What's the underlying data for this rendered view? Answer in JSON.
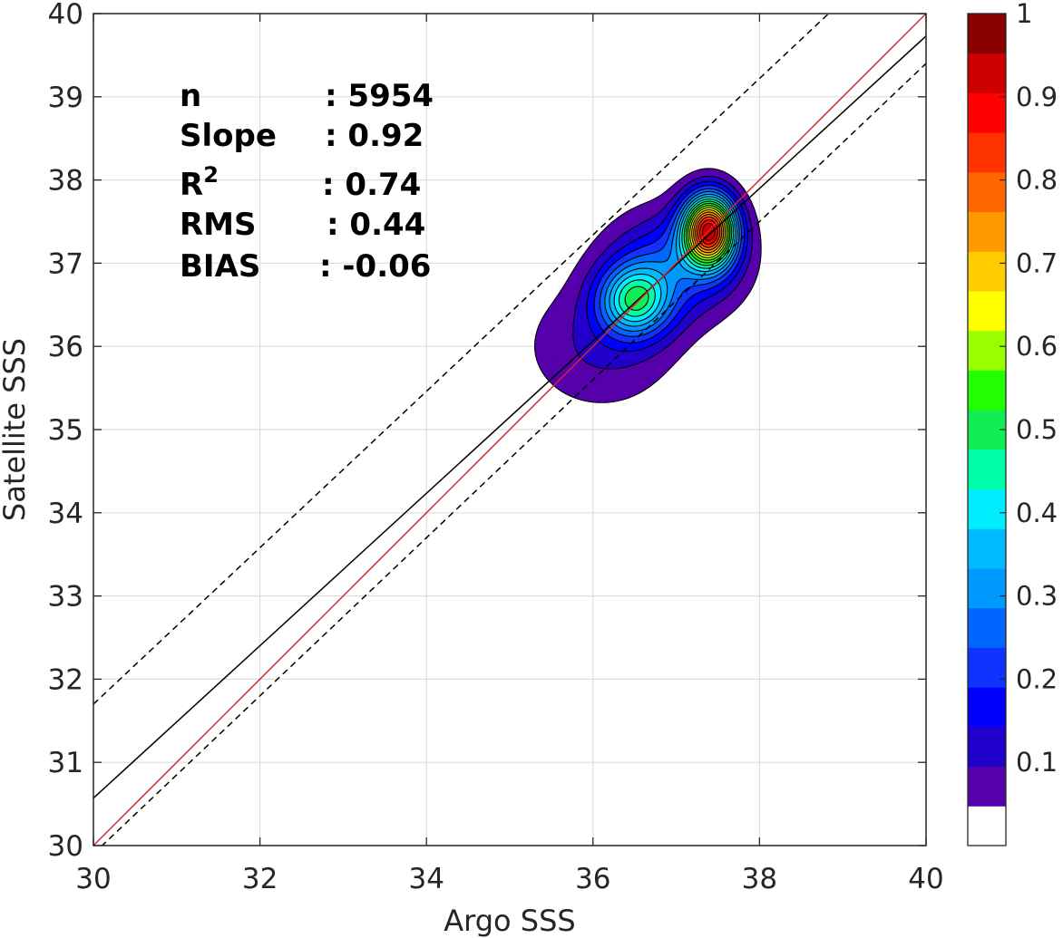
{
  "chart_data": {
    "type": "contour",
    "xlabel": "Argo SSS",
    "ylabel": "Satellite SSS",
    "xlim": [
      30,
      40
    ],
    "ylim": [
      30,
      40
    ],
    "x_ticks": [
      "30",
      "32",
      "34",
      "36",
      "38",
      "40"
    ],
    "y_ticks": [
      "30",
      "31",
      "32",
      "33",
      "34",
      "35",
      "36",
      "37",
      "38",
      "39",
      "40"
    ],
    "grid": true,
    "stats": [
      {
        "label": "n",
        "value": ": 5954"
      },
      {
        "label": "Slope",
        "value": ": 0.92"
      },
      {
        "label": "R",
        "sup": "2",
        "value": ": 0.74"
      },
      {
        "label": "RMS",
        "value": ": 0.44"
      },
      {
        "label": "BIAS",
        "value": ": -0.06"
      }
    ],
    "lines": {
      "one_to_one": {
        "slope": 1.0,
        "intercept": 0.0,
        "color": "#d62728",
        "style": "solid"
      },
      "fit": {
        "slope": 0.916,
        "intercept": 3.09,
        "color": "#000000",
        "style": "solid"
      },
      "upper_bound": {
        "slope": 0.94,
        "intercept": 3.5,
        "color": "#000000",
        "style": "dashed"
      },
      "lower_bound": {
        "slope": 0.95,
        "intercept": 1.4,
        "color": "#000000",
        "style": "dashed"
      }
    },
    "density": {
      "peaks": [
        {
          "x": 37.4,
          "y": 37.4,
          "sx": 0.22,
          "sy": 0.3,
          "amp": 1.0
        },
        {
          "x": 36.5,
          "y": 36.55,
          "sx": 0.3,
          "sy": 0.3,
          "amp": 0.45
        },
        {
          "x": 36.1,
          "y": 36.0,
          "sx": 0.65,
          "sy": 0.55,
          "amp": 0.12
        },
        {
          "x": 37.0,
          "y": 37.0,
          "sx": 0.55,
          "sy": 0.45,
          "amp": 0.25
        }
      ]
    },
    "colorbar": {
      "ticks": [
        "0.1",
        "0.2",
        "0.3",
        "0.4",
        "0.5",
        "0.6",
        "0.7",
        "0.8",
        "0.9",
        "1"
      ],
      "levels": [
        0.05,
        0.1,
        0.15,
        0.2,
        0.25,
        0.3,
        0.35,
        0.4,
        0.45,
        0.5,
        0.55,
        0.6,
        0.65,
        0.7,
        0.75,
        0.8,
        0.85,
        0.9,
        0.95
      ],
      "colors": [
        "#ffffff",
        "#5500aa",
        "#2200cc",
        "#0000ff",
        "#1133ff",
        "#0066ff",
        "#0099ff",
        "#00bbff",
        "#00eeff",
        "#00ffaa",
        "#11ee55",
        "#22ff00",
        "#99ff00",
        "#ffff00",
        "#ffcc00",
        "#ff9900",
        "#ff6600",
        "#ff3300",
        "#ff0000",
        "#cc0000",
        "#880000"
      ]
    }
  }
}
